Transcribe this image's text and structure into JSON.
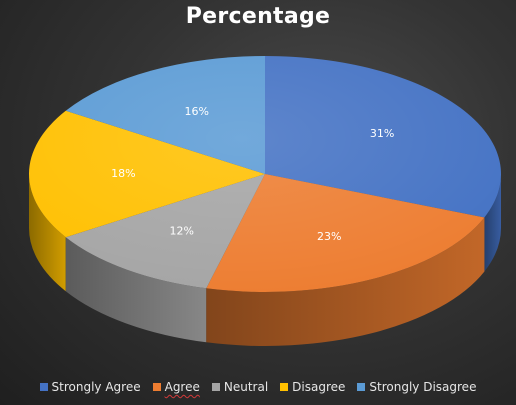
{
  "chart_data": {
    "type": "pie",
    "title": "Percentage",
    "categories": [
      "Strongly Agree",
      "Agree",
      "Neutral",
      "Disagree",
      "Strongly Disagree"
    ],
    "values": [
      31,
      23,
      12,
      18,
      16
    ],
    "labels": [
      "31%",
      "23%",
      "12%",
      "18%",
      "16%"
    ],
    "colors": [
      "#4472C4",
      "#ED7D31",
      "#A5A5A5",
      "#FFC000",
      "#5B9BD5"
    ],
    "style": "3d",
    "legend": "bottom"
  }
}
